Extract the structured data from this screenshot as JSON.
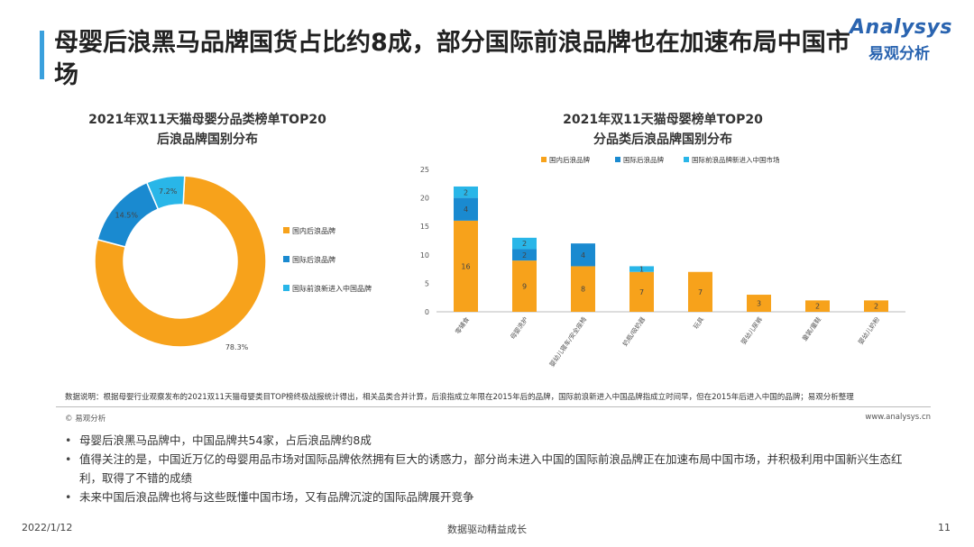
{
  "header": {
    "title": "母婴后浪黑马品牌国货占比约8成，部分国际前浪品牌也在加速布局中国市场",
    "logo_en": "Analysys",
    "logo_cn": "易观分析"
  },
  "chart_data": [
    {
      "type": "pie",
      "title_line1": "2021年双11天猫母婴分品类榜单TOP20",
      "title_line2": "后浪品牌国别分布",
      "labels": [
        "国内后浪品牌",
        "国际后浪品牌",
        "国际前浪新进入中国品牌"
      ],
      "values": [
        78.3,
        14.5,
        7.2
      ],
      "value_labels": [
        "78.3%",
        "14.5%",
        "7.2%"
      ],
      "colors": [
        "#f7a21b",
        "#1a8ad0",
        "#29b6e8"
      ],
      "legend_position": "right"
    },
    {
      "type": "bar",
      "stacked": true,
      "title_line1": "2021年双11天猫母婴榜单TOP20",
      "title_line2": "分品类后浪品牌国别分布",
      "categories": [
        "零辅食",
        "母婴洗护",
        "婴幼儿寝车/安全座椅",
        "奶瓶/吸奶器",
        "玩具",
        "婴幼儿尿裤",
        "童装/童鞋",
        "婴幼儿奶粉"
      ],
      "series": [
        {
          "name": "国内后浪品牌",
          "values": [
            16,
            9,
            8,
            7,
            7,
            3,
            2,
            2
          ],
          "color": "#f7a21b"
        },
        {
          "name": "国际后浪品牌",
          "values": [
            4,
            2,
            4,
            0,
            0,
            0,
            0,
            0
          ],
          "color": "#1a8ad0"
        },
        {
          "name": "国际前浪品牌新进入中国市场",
          "values": [
            2,
            2,
            0,
            1,
            0,
            0,
            0,
            0
          ],
          "color": "#29b6e8"
        }
      ],
      "value_labels": [
        [
          "16",
          "9",
          "8",
          "7",
          "7",
          "3",
          "2",
          "2"
        ],
        [
          "4",
          "2",
          "4",
          "",
          "",
          "",
          "",
          ""
        ],
        [
          "2",
          "2",
          "",
          "1",
          "",
          "",
          "",
          ""
        ]
      ],
      "ylim": [
        0,
        25
      ],
      "yticks": [
        0,
        5,
        10,
        15,
        20,
        25
      ],
      "legend_position": "top"
    }
  ],
  "note": "数据说明：根据母婴行业观察发布的2021双11天猫母婴类目TOP榜终极战报统计得出，相关品类合并计算，后浪指成立年限在2015年后的品牌，国际前浪新进入中国品牌指成立时间早，但在2015年后进入中国的品牌；易观分析整理",
  "copyright": "© 易观分析",
  "website": "www.analysys.cn",
  "bullets": [
    "母婴后浪黑马品牌中，中国品牌共54家，占后浪品牌约8成",
    "值得关注的是，中国近万亿的母婴用品市场对国际品牌依然拥有巨大的诱惑力，部分尚未进入中国的国际前浪品牌正在加速布局中国市场，并积极利用中国新兴生态红利，取得了不错的成绩",
    "未来中国后浪品牌也将与这些既懂中国市场，又有品牌沉淀的国际品牌展开竞争"
  ],
  "footer": {
    "date": "2022/1/12",
    "slogan": "数据驱动精益成长",
    "page": "11"
  }
}
